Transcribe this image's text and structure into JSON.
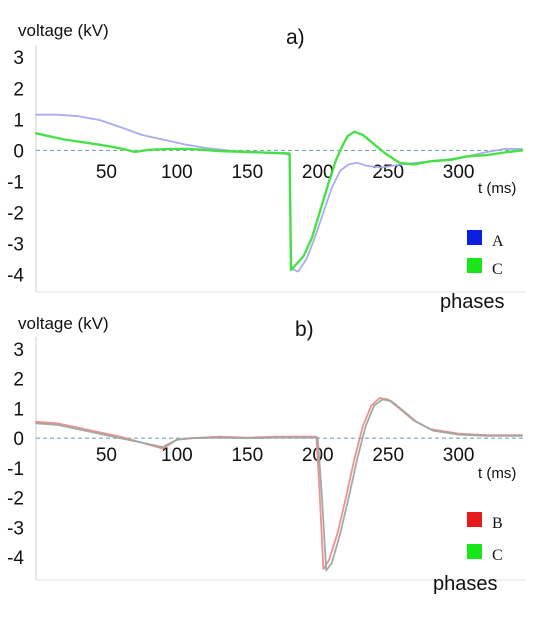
{
  "chart_data": [
    {
      "type": "line",
      "title": "a)",
      "ylabel": "voltage (kV)",
      "xlabel": "t (ms)",
      "xlim": [
        0,
        345
      ],
      "ylim": [
        -4.3,
        3.2
      ],
      "x_ticks": [
        "50",
        "100",
        "150",
        "200",
        "250",
        "300"
      ],
      "y_ticks": [
        "3",
        "2",
        "1",
        "0",
        "-1",
        "-2",
        "-3",
        "-4"
      ],
      "zero_line": "dashed",
      "legend_title": "phases",
      "legend_position": "bottom-right",
      "series": [
        {
          "name": "A",
          "legend_color": "#0b1fe0",
          "color": "#a4a8ee",
          "points": [
            [
              0,
              1.15
            ],
            [
              15,
              1.15
            ],
            [
              30,
              1.1
            ],
            [
              45,
              0.98
            ],
            [
              60,
              0.75
            ],
            [
              75,
              0.5
            ],
            [
              90,
              0.35
            ],
            [
              105,
              0.2
            ],
            [
              120,
              0.08
            ],
            [
              140,
              -0.02
            ],
            [
              160,
              -0.07
            ],
            [
              176,
              -0.1
            ],
            [
              180,
              -0.15
            ],
            [
              181,
              -3.8
            ],
            [
              186,
              -3.9
            ],
            [
              192,
              -3.5
            ],
            [
              198,
              -2.8
            ],
            [
              204,
              -2.0
            ],
            [
              210,
              -1.2
            ],
            [
              216,
              -0.65
            ],
            [
              222,
              -0.45
            ],
            [
              228,
              -0.4
            ],
            [
              235,
              -0.5
            ],
            [
              245,
              -0.55
            ],
            [
              260,
              -0.45
            ],
            [
              280,
              -0.35
            ],
            [
              300,
              -0.25
            ],
            [
              320,
              -0.05
            ],
            [
              333,
              0.05
            ],
            [
              345,
              0.05
            ]
          ]
        },
        {
          "name": "C",
          "legend_color": "#19e619",
          "color": "#3ee03e",
          "points": [
            [
              0,
              0.55
            ],
            [
              10,
              0.45
            ],
            [
              20,
              0.35
            ],
            [
              35,
              0.25
            ],
            [
              50,
              0.15
            ],
            [
              62,
              0.05
            ],
            [
              70,
              -0.05
            ],
            [
              80,
              0.02
            ],
            [
              95,
              0.05
            ],
            [
              110,
              0.05
            ],
            [
              130,
              -0.02
            ],
            [
              150,
              -0.05
            ],
            [
              170,
              -0.08
            ],
            [
              180,
              -0.1
            ],
            [
              181,
              -3.85
            ],
            [
              184,
              -3.7
            ],
            [
              190,
              -3.4
            ],
            [
              196,
              -2.8
            ],
            [
              202,
              -1.9
            ],
            [
              208,
              -1.0
            ],
            [
              213,
              -0.3
            ],
            [
              217,
              0.1
            ],
            [
              221,
              0.45
            ],
            [
              226,
              0.6
            ],
            [
              232,
              0.5
            ],
            [
              240,
              0.2
            ],
            [
              248,
              -0.1
            ],
            [
              258,
              -0.4
            ],
            [
              268,
              -0.45
            ],
            [
              280,
              -0.35
            ],
            [
              295,
              -0.3
            ],
            [
              305,
              -0.2
            ],
            [
              320,
              -0.15
            ],
            [
              335,
              -0.05
            ],
            [
              345,
              0.0
            ]
          ]
        }
      ]
    },
    {
      "type": "line",
      "title": "b)",
      "ylabel": "voltage (kV)",
      "xlabel": "t (ms)",
      "xlim": [
        0,
        345
      ],
      "ylim": [
        -4.5,
        3.2
      ],
      "x_ticks": [
        "50",
        "100",
        "150",
        "200",
        "250",
        "300"
      ],
      "y_ticks": [
        "3",
        "2",
        "1",
        "0",
        "-1",
        "-2",
        "-3",
        "-4"
      ],
      "zero_line": "dashed",
      "legend_title": "phases",
      "legend_position": "bottom-right",
      "series": [
        {
          "name": "B",
          "legend_color": "#e51a1a",
          "color": "#f08a8a",
          "points": [
            [
              0,
              0.55
            ],
            [
              15,
              0.5
            ],
            [
              30,
              0.35
            ],
            [
              45,
              0.2
            ],
            [
              60,
              0.05
            ],
            [
              75,
              -0.15
            ],
            [
              90,
              -0.35
            ],
            [
              100,
              -0.05
            ],
            [
              110,
              0.0
            ],
            [
              130,
              0.05
            ],
            [
              150,
              0.02
            ],
            [
              170,
              0.05
            ],
            [
              190,
              0.05
            ],
            [
              199,
              0.05
            ],
            [
              201,
              -1.5
            ],
            [
              204,
              -4.4
            ],
            [
              208,
              -4.1
            ],
            [
              214,
              -3.2
            ],
            [
              220,
              -2.0
            ],
            [
              226,
              -0.7
            ],
            [
              232,
              0.4
            ],
            [
              238,
              1.1
            ],
            [
              244,
              1.35
            ],
            [
              250,
              1.3
            ],
            [
              258,
              1.0
            ],
            [
              268,
              0.6
            ],
            [
              280,
              0.3
            ],
            [
              300,
              0.15
            ],
            [
              320,
              0.1
            ],
            [
              345,
              0.1
            ]
          ]
        },
        {
          "name": "C",
          "legend_color": "#19e619",
          "color": "#9aa8a0",
          "points": [
            [
              0,
              0.5
            ],
            [
              15,
              0.45
            ],
            [
              30,
              0.3
            ],
            [
              45,
              0.15
            ],
            [
              60,
              0.0
            ],
            [
              75,
              -0.15
            ],
            [
              90,
              -0.3
            ],
            [
              100,
              -0.05
            ],
            [
              110,
              0.0
            ],
            [
              130,
              0.02
            ],
            [
              150,
              0.0
            ],
            [
              170,
              0.02
            ],
            [
              190,
              0.02
            ],
            [
              200,
              0.02
            ],
            [
              203,
              -2.0
            ],
            [
              206,
              -4.45
            ],
            [
              210,
              -4.2
            ],
            [
              216,
              -3.2
            ],
            [
              222,
              -2.0
            ],
            [
              228,
              -0.7
            ],
            [
              234,
              0.4
            ],
            [
              240,
              1.1
            ],
            [
              246,
              1.3
            ],
            [
              252,
              1.25
            ],
            [
              260,
              0.95
            ],
            [
              270,
              0.55
            ],
            [
              282,
              0.25
            ],
            [
              300,
              0.12
            ],
            [
              320,
              0.08
            ],
            [
              345,
              0.08
            ]
          ]
        }
      ]
    }
  ]
}
